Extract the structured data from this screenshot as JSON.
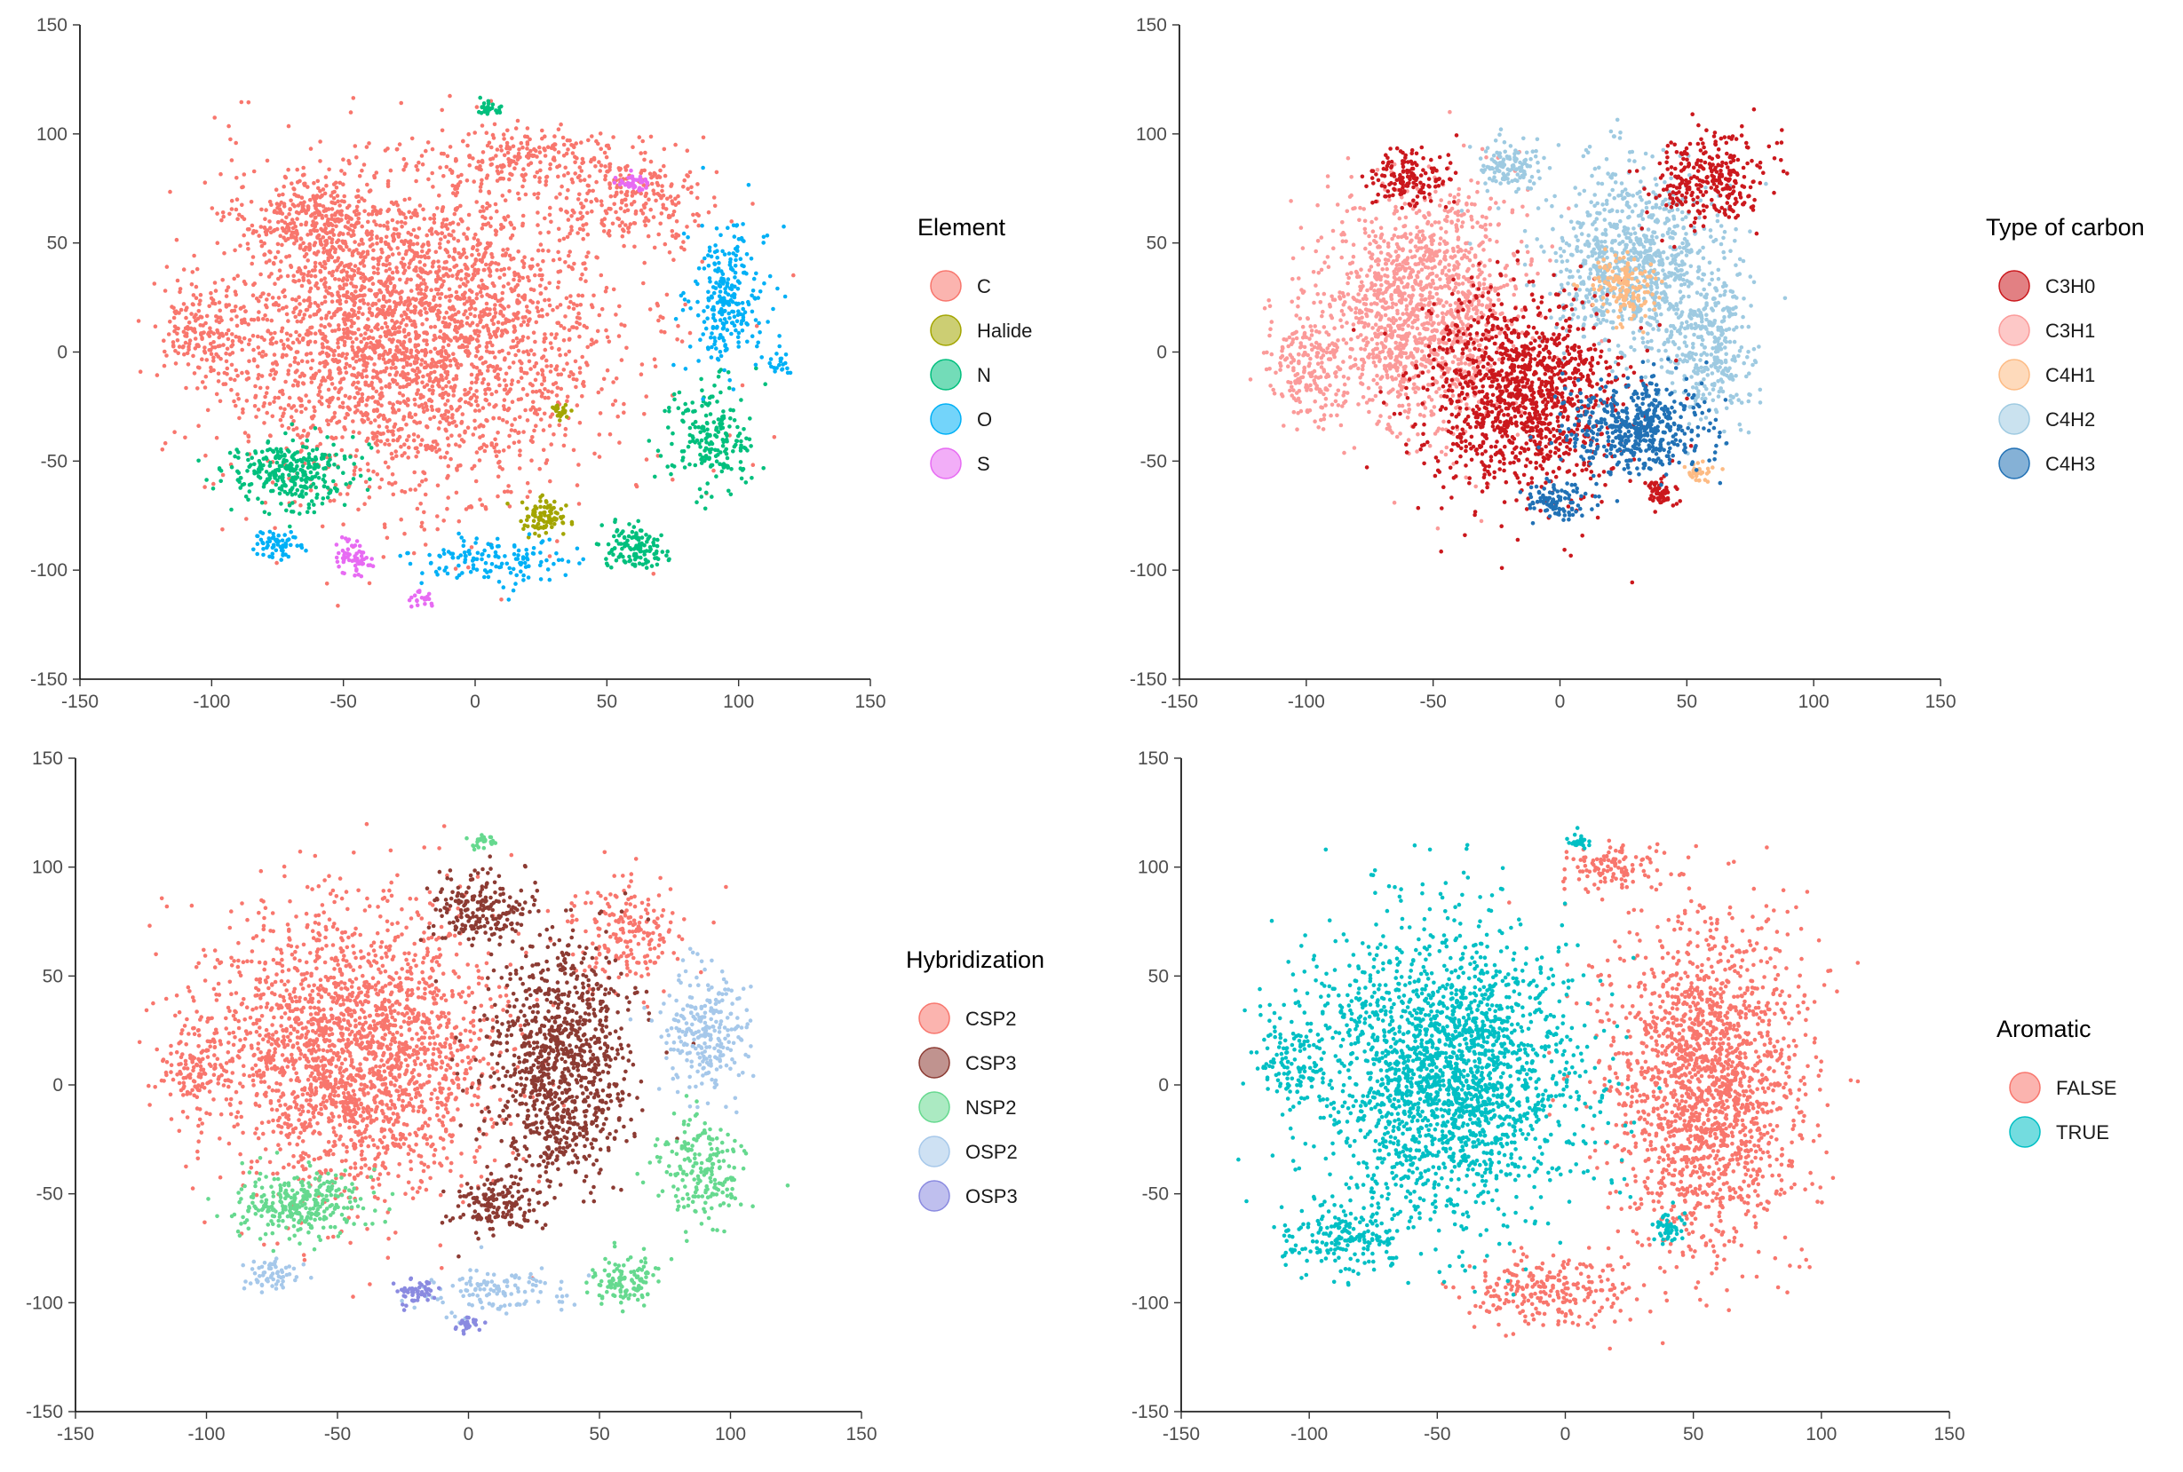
{
  "chart_data": [
    {
      "type": "scatter",
      "title": "",
      "xlabel": "",
      "ylabel": "",
      "xlim": [
        -150,
        150
      ],
      "ylim": [
        -150,
        150
      ],
      "x_ticks": [
        "-150",
        "-100",
        "-50",
        "0",
        "50",
        "100",
        "150"
      ],
      "y_ticks": [
        "-150",
        "-100",
        "-50",
        "0",
        "50",
        "100",
        "150"
      ],
      "grid": false,
      "legend_position": "right",
      "legend_title": "Element",
      "legend": [
        {
          "label": "C",
          "color": "#F8766D"
        },
        {
          "label": "Halide",
          "color": "#A3A500"
        },
        {
          "label": "N",
          "color": "#00BF7D"
        },
        {
          "label": "O",
          "color": "#00B0F6"
        },
        {
          "label": "S",
          "color": "#E76BF3"
        }
      ],
      "series": [
        {
          "name": "C",
          "color": "#F8766D",
          "clusters": [
            [
              -25,
              10,
              70,
              65,
              3000
            ],
            [
              -60,
              60,
              25,
              20,
              300
            ],
            [
              60,
              70,
              25,
              20,
              250
            ],
            [
              20,
              90,
              30,
              12,
              180
            ],
            [
              -105,
              10,
              12,
              18,
              120
            ]
          ]
        },
        {
          "name": "Halide",
          "color": "#A3A500",
          "clusters": [
            [
              25,
              -75,
              8,
              7,
              90
            ],
            [
              33,
              -28,
              3,
              3,
              20
            ]
          ]
        },
        {
          "name": "N",
          "color": "#00BF7D",
          "clusters": [
            [
              -70,
              -55,
              22,
              14,
              300
            ],
            [
              90,
              -40,
              15,
              22,
              200
            ],
            [
              60,
              -90,
              12,
              10,
              120
            ],
            [
              5,
              112,
              4,
              3,
              30
            ]
          ]
        },
        {
          "name": "O",
          "color": "#00B0F6",
          "clusters": [
            [
              95,
              25,
              14,
              28,
              260
            ],
            [
              -75,
              -88,
              10,
              6,
              60
            ],
            [
              5,
              -95,
              25,
              10,
              140
            ],
            [
              115,
              -5,
              4,
              6,
              20
            ]
          ]
        },
        {
          "name": "S",
          "color": "#E76BF3",
          "clusters": [
            [
              -47,
              -95,
              6,
              7,
              60
            ],
            [
              60,
              78,
              5,
              4,
              40
            ],
            [
              -20,
              -113,
              4,
              3,
              20
            ]
          ]
        }
      ]
    },
    {
      "type": "scatter",
      "title": "",
      "xlabel": "",
      "ylabel": "",
      "xlim": [
        -150,
        150
      ],
      "ylim": [
        -150,
        150
      ],
      "x_ticks": [
        "-150",
        "-100",
        "-50",
        "0",
        "50",
        "100",
        "150"
      ],
      "y_ticks": [
        "-150",
        "-100",
        "-50",
        "0",
        "50",
        "100",
        "150"
      ],
      "grid": false,
      "legend_position": "right",
      "legend_title": "Type of carbon",
      "legend": [
        {
          "label": "C3H0",
          "color": "#CB181D"
        },
        {
          "label": "C3H1",
          "color": "#FB9A99"
        },
        {
          "label": "C4H1",
          "color": "#FDBB84"
        },
        {
          "label": "C4H2",
          "color": "#9ECAE1"
        },
        {
          "label": "C4H3",
          "color": "#2171B5"
        }
      ],
      "series": [
        {
          "name": "C3H1",
          "color": "#FB9A99",
          "clusters": [
            [
              -55,
              20,
              35,
              50,
              1400
            ],
            [
              -100,
              -5,
              15,
              25,
              200
            ]
          ]
        },
        {
          "name": "C4H2",
          "color": "#9ECAE1",
          "clusters": [
            [
              30,
              40,
              30,
              40,
              900
            ],
            [
              -20,
              85,
              12,
              10,
              120
            ],
            [
              60,
              0,
              15,
              30,
              300
            ]
          ]
        },
        {
          "name": "C3H0",
          "color": "#CB181D",
          "clusters": [
            [
              -15,
              -20,
              35,
              40,
              1200
            ],
            [
              60,
              80,
              20,
              20,
              300
            ],
            [
              -60,
              80,
              15,
              12,
              150
            ],
            [
              40,
              -65,
              6,
              6,
              60
            ]
          ]
        },
        {
          "name": "C4H1",
          "color": "#FDBB84",
          "clusters": [
            [
              25,
              30,
              10,
              15,
              150
            ],
            [
              55,
              -55,
              5,
              4,
              30
            ]
          ]
        },
        {
          "name": "C4H3",
          "color": "#2171B5",
          "clusters": [
            [
              30,
              -35,
              25,
              18,
              500
            ],
            [
              0,
              -68,
              12,
              8,
              100
            ]
          ]
        }
      ]
    },
    {
      "type": "scatter",
      "title": "",
      "xlabel": "",
      "ylabel": "",
      "xlim": [
        -150,
        150
      ],
      "ylim": [
        -150,
        150
      ],
      "x_ticks": [
        "-150",
        "-100",
        "-50",
        "0",
        "50",
        "100",
        "150"
      ],
      "y_ticks": [
        "-150",
        "-100",
        "-50",
        "0",
        "50",
        "100",
        "150"
      ],
      "grid": false,
      "legend_position": "right",
      "legend_title": "Hybridization",
      "legend": [
        {
          "label": "CSP2",
          "color": "#F8766D"
        },
        {
          "label": "CSP3",
          "color": "#8C3B33"
        },
        {
          "label": "NSP2",
          "color": "#66D98F"
        },
        {
          "label": "OSP2",
          "color": "#A6C8EA"
        },
        {
          "label": "OSP3",
          "color": "#8A8AE0"
        }
      ],
      "series": [
        {
          "name": "CSP2",
          "color": "#F8766D",
          "clusters": [
            [
              -45,
              15,
              50,
              60,
              2200
            ],
            [
              60,
              70,
              20,
              20,
              200
            ],
            [
              -105,
              10,
              12,
              18,
              120
            ]
          ]
        },
        {
          "name": "CSP3",
          "color": "#8C3B33",
          "clusters": [
            [
              35,
              10,
              25,
              50,
              1000
            ],
            [
              5,
              80,
              18,
              15,
              200
            ],
            [
              10,
              -55,
              15,
              12,
              150
            ]
          ]
        },
        {
          "name": "NSP2",
          "color": "#66D98F",
          "clusters": [
            [
              -65,
              -55,
              22,
              14,
              300
            ],
            [
              90,
              -40,
              15,
              22,
              200
            ],
            [
              60,
              -90,
              12,
              10,
              120
            ],
            [
              5,
              112,
              4,
              3,
              30
            ]
          ]
        },
        {
          "name": "OSP2",
          "color": "#A6C8EA",
          "clusters": [
            [
              90,
              25,
              14,
              28,
              260
            ],
            [
              -75,
              -88,
              10,
              6,
              60
            ],
            [
              10,
              -95,
              22,
              10,
              120
            ]
          ]
        },
        {
          "name": "OSP3",
          "color": "#8A8AE0",
          "clusters": [
            [
              -20,
              -95,
              6,
              6,
              50
            ],
            [
              0,
              -110,
              4,
              4,
              25
            ]
          ]
        }
      ]
    },
    {
      "type": "scatter",
      "title": "",
      "xlabel": "",
      "ylabel": "",
      "xlim": [
        -150,
        150
      ],
      "ylim": [
        -150,
        150
      ],
      "x_ticks": [
        "-150",
        "-100",
        "-50",
        "0",
        "50",
        "100",
        "150"
      ],
      "y_ticks": [
        "-150",
        "-100",
        "-50",
        "0",
        "50",
        "100",
        "150"
      ],
      "grid": false,
      "legend_position": "right",
      "legend_title": "Aromatic",
      "legend": [
        {
          "label": "FALSE",
          "color": "#F8766D"
        },
        {
          "label": "TRUE",
          "color": "#00BFC4"
        }
      ],
      "series": [
        {
          "name": "FALSE",
          "color": "#F8766D",
          "clusters": [
            [
              55,
              0,
              35,
              70,
              1800
            ],
            [
              -5,
              -95,
              30,
              15,
              250
            ],
            [
              20,
              100,
              20,
              10,
              120
            ]
          ]
        },
        {
          "name": "TRUE",
          "color": "#00BFC4",
          "clusters": [
            [
              -45,
              5,
              45,
              60,
              2200
            ],
            [
              -85,
              -70,
              20,
              15,
              200
            ],
            [
              -105,
              10,
              12,
              18,
              120
            ],
            [
              5,
              112,
              4,
              3,
              30
            ],
            [
              40,
              -65,
              6,
              6,
              50
            ]
          ]
        }
      ]
    }
  ]
}
